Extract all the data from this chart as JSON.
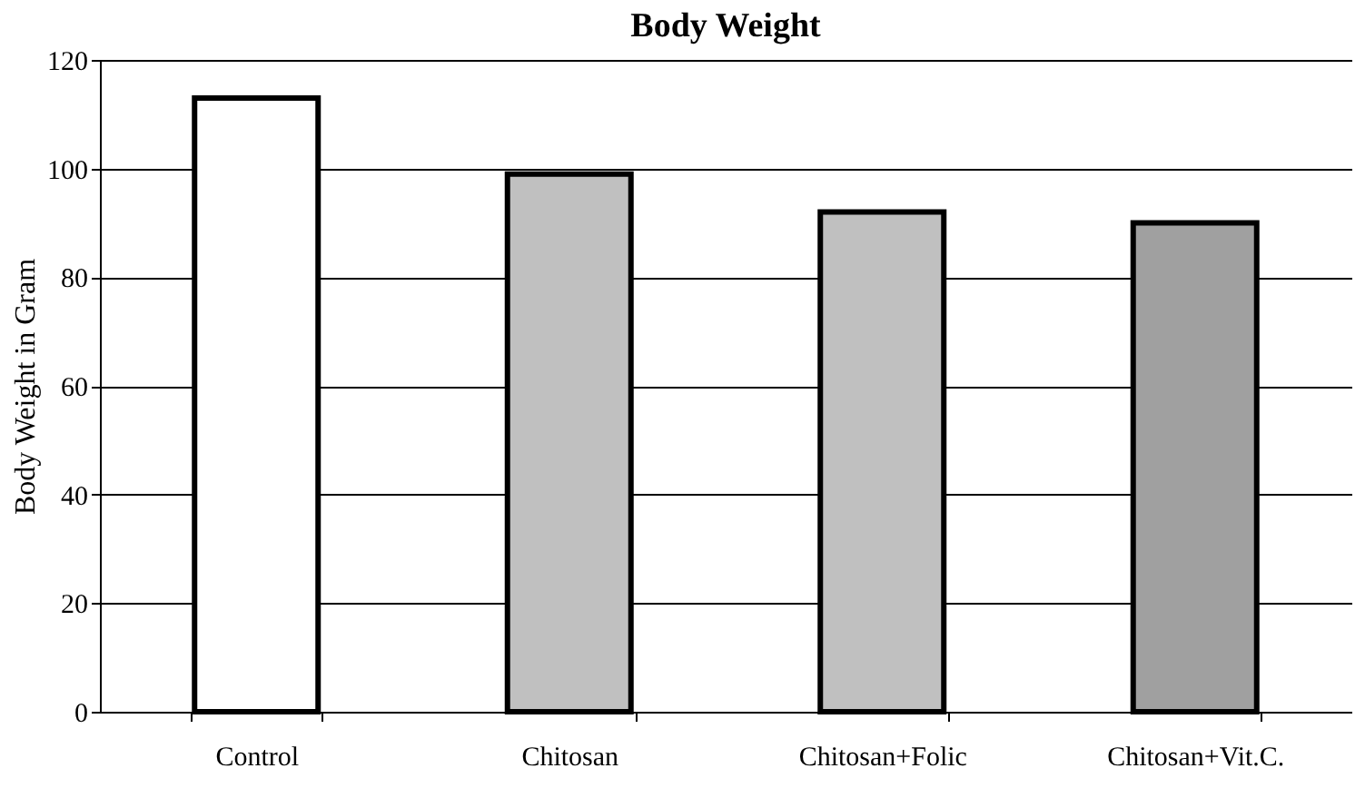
{
  "chart_data": {
    "type": "bar",
    "title": "Body Weight",
    "ylabel": "Body Weight in Gram",
    "categories": [
      "Control",
      "Chitosan",
      "Chitosan+Folic",
      "Chitosan+Vit.C."
    ],
    "values": [
      113,
      99,
      92,
      90
    ],
    "colors": [
      "#ffffff",
      "#c0c0c0",
      "#c0c0c0",
      "#a0a0a0"
    ],
    "ylim": [
      0,
      120
    ],
    "yticks": [
      0,
      20,
      40,
      60,
      80,
      100,
      120
    ],
    "grid": "y"
  }
}
